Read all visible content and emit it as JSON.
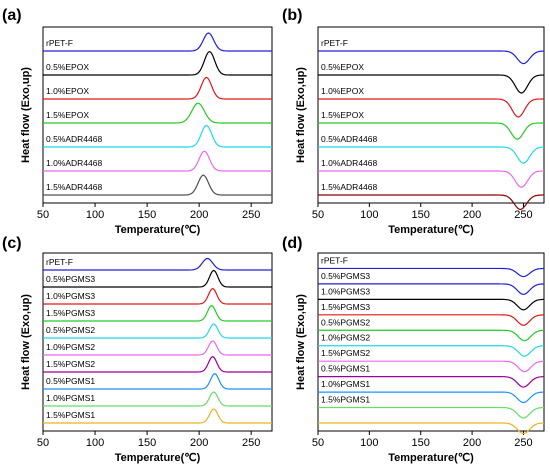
{
  "chart_data": [
    {
      "panel": "(a)",
      "type": "line",
      "xlabel": "Temperature(℃)",
      "ylabel": "Heat flow (Exo,up)",
      "xlim": [
        50,
        270
      ],
      "xticks": [
        50,
        100,
        150,
        200,
        250
      ],
      "grid": false,
      "series": [
        {
          "name": "rPET-F",
          "color": "#2020d8",
          "peak_x": 209,
          "peak_height": 1.0,
          "peak_width": 5
        },
        {
          "name": "0.5%EPOX",
          "color": "#000000",
          "peak_x": 210,
          "peak_height": 1.3,
          "peak_width": 5
        },
        {
          "name": "1.0%EPOX",
          "color": "#e01818",
          "peak_x": 207,
          "peak_height": 1.2,
          "peak_width": 5
        },
        {
          "name": "1.5%EPOX",
          "color": "#22cc22",
          "peak_x": 199,
          "peak_height": 1.1,
          "peak_width": 6
        },
        {
          "name": "0.5%ADR4468",
          "color": "#20d8e8",
          "peak_x": 207,
          "peak_height": 1.2,
          "peak_width": 5
        },
        {
          "name": "1.0%ADR4468",
          "color": "#ee66ee",
          "peak_x": 205,
          "peak_height": 1.1,
          "peak_width": 5
        },
        {
          "name": "1.5%ADR4468",
          "color": "#505050",
          "peak_x": 204,
          "peak_height": 1.1,
          "peak_width": 5
        }
      ]
    },
    {
      "panel": "(b)",
      "type": "line",
      "xlabel": "Temperature(℃)",
      "ylabel": "Heat flow (Exo,up)",
      "xlim": [
        50,
        270
      ],
      "xticks": [
        50,
        100,
        150,
        200,
        250
      ],
      "grid": false,
      "series": [
        {
          "name": "rPET-F",
          "color": "#2020d8",
          "peak_x": 250,
          "peak_height": -0.7,
          "peak_width": 6
        },
        {
          "name": "0.5%EPOX",
          "color": "#000000",
          "peak_x": 248,
          "peak_height": -1.0,
          "peak_width": 6
        },
        {
          "name": "1.0%EPOX",
          "color": "#e01818",
          "peak_x": 245,
          "peak_height": -1.0,
          "peak_width": 6
        },
        {
          "name": "1.5%EPOX",
          "color": "#22cc22",
          "peak_x": 244,
          "peak_height": -0.9,
          "peak_width": 6
        },
        {
          "name": "0.5%ADR4468",
          "color": "#20d8e8",
          "peak_x": 250,
          "peak_height": -0.9,
          "peak_width": 6
        },
        {
          "name": "1.0%ADR4468",
          "color": "#ee66ee",
          "peak_x": 248,
          "peak_height": -0.9,
          "peak_width": 6
        },
        {
          "name": "1.5%ADR4468",
          "color": "#8b0000",
          "peak_x": 247,
          "peak_height": -0.8,
          "peak_width": 6
        }
      ]
    },
    {
      "panel": "(c)",
      "type": "line",
      "xlabel": "Temperature(℃)",
      "ylabel": "Heat flow (Exo,up)",
      "xlim": [
        50,
        270
      ],
      "xticks": [
        50,
        100,
        150,
        200,
        250
      ],
      "grid": false,
      "series": [
        {
          "name": "rPET-F",
          "color": "#2020d8",
          "peak_x": 208,
          "peak_height": 0.9,
          "peak_width": 5
        },
        {
          "name": "0.5%PGMS3",
          "color": "#000000",
          "peak_x": 214,
          "peak_height": 1.3,
          "peak_width": 4
        },
        {
          "name": "1.0%PGMS3",
          "color": "#e01818",
          "peak_x": 213,
          "peak_height": 1.2,
          "peak_width": 4
        },
        {
          "name": "1.5%PGMS3",
          "color": "#22cc22",
          "peak_x": 212,
          "peak_height": 1.2,
          "peak_width": 4
        },
        {
          "name": "0.5%PGMS2",
          "color": "#20d8e8",
          "peak_x": 214,
          "peak_height": 1.1,
          "peak_width": 4
        },
        {
          "name": "1.0%PGMS2",
          "color": "#ee66ee",
          "peak_x": 213,
          "peak_height": 1.1,
          "peak_width": 4
        },
        {
          "name": "1.5%PGMS2",
          "color": "#990099",
          "peak_x": 213,
          "peak_height": 1.2,
          "peak_width": 4
        },
        {
          "name": "0.5%PGMS1",
          "color": "#1e90ff",
          "peak_x": 215,
          "peak_height": 1.2,
          "peak_width": 4
        },
        {
          "name": "1.0%PGMS1",
          "color": "#66dd66",
          "peak_x": 214,
          "peak_height": 1.1,
          "peak_width": 4
        },
        {
          "name": "1.5%PGMS1",
          "color": "#f0b020",
          "peak_x": 214,
          "peak_height": 1.1,
          "peak_width": 4
        }
      ]
    },
    {
      "panel": "(d)",
      "type": "line",
      "xlabel": "Temperature(℃)",
      "ylabel": "Heat flow (Exo,up)",
      "xlim": [
        50,
        270
      ],
      "xticks": [
        50,
        100,
        150,
        200,
        250
      ],
      "grid": false,
      "series": [
        {
          "name": "rPET-F",
          "color": "#2020d8",
          "peak_x": 250,
          "peak_height": -0.7,
          "peak_width": 6
        },
        {
          "name": "0.5%PGMS3",
          "color": "#2020d8",
          "peak_x": 250,
          "peak_height": -0.9,
          "peak_width": 6
        },
        {
          "name": "1.0%PGMS3",
          "color": "#000000",
          "peak_x": 250,
          "peak_height": -0.9,
          "peak_width": 6
        },
        {
          "name": "1.5%PGMS3",
          "color": "#e01818",
          "peak_x": 250,
          "peak_height": -0.9,
          "peak_width": 6
        },
        {
          "name": "0.5%PGMS2",
          "color": "#22cc22",
          "peak_x": 251,
          "peak_height": -0.9,
          "peak_width": 6
        },
        {
          "name": "1.0%PGMS2",
          "color": "#20d8e8",
          "peak_x": 251,
          "peak_height": -0.9,
          "peak_width": 6
        },
        {
          "name": "1.5%PGMS2",
          "color": "#ee66ee",
          "peak_x": 251,
          "peak_height": -0.9,
          "peak_width": 6
        },
        {
          "name": "0.5%PGMS1",
          "color": "#990099",
          "peak_x": 250,
          "peak_height": -0.9,
          "peak_width": 6
        },
        {
          "name": "1.0%PGMS1",
          "color": "#1e90ff",
          "peak_x": 250,
          "peak_height": -0.9,
          "peak_width": 6
        },
        {
          "name": "1.5%PGMS1",
          "color": "#66dd66",
          "peak_x": 250,
          "peak_height": -0.9,
          "peak_width": 6
        },
        {
          "name": "",
          "color": "#f0b020",
          "peak_x": 250,
          "peak_height": -0.9,
          "peak_width": 6
        }
      ]
    }
  ]
}
